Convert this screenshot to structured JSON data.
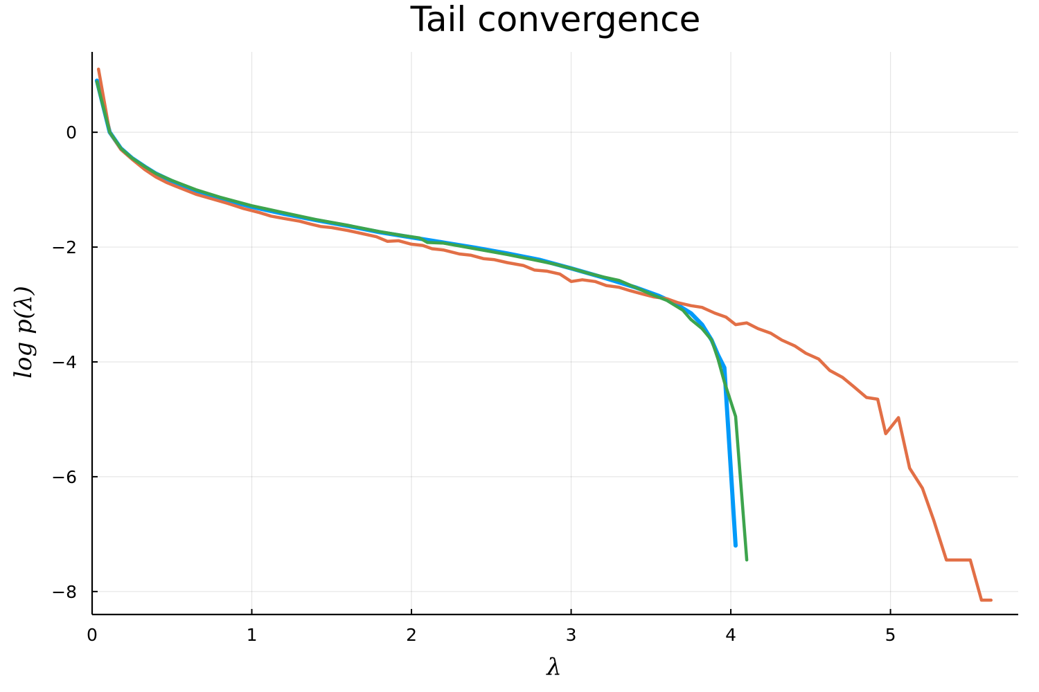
{
  "chart_data": {
    "type": "line",
    "title": "Tail convergence",
    "xlabel": "λ",
    "ylabel": "log p(λ)",
    "xlim": [
      0,
      5.8
    ],
    "ylim": [
      -8.4,
      1.4
    ],
    "xticks": [
      0,
      1,
      2,
      3,
      4,
      5
    ],
    "yticks": [
      0,
      -2,
      -4,
      -6,
      -8
    ],
    "xtick_labels": [
      "0",
      "1",
      "2",
      "3",
      "4",
      "5"
    ],
    "ytick_labels": [
      "0",
      "−2",
      "−4",
      "−6",
      "−8"
    ],
    "grid": true,
    "legend": "none",
    "series": [
      {
        "color": "#009af9",
        "width": 6,
        "points": [
          [
            0.03,
            0.9
          ],
          [
            0.11,
            0.0
          ],
          [
            0.18,
            -0.28
          ],
          [
            0.25,
            -0.45
          ],
          [
            0.33,
            -0.6
          ],
          [
            0.4,
            -0.72
          ],
          [
            0.5,
            -0.85
          ],
          [
            0.65,
            -1.02
          ],
          [
            0.8,
            -1.15
          ],
          [
            1.0,
            -1.3
          ],
          [
            1.2,
            -1.42
          ],
          [
            1.4,
            -1.53
          ],
          [
            1.6,
            -1.63
          ],
          [
            1.8,
            -1.74
          ],
          [
            2.0,
            -1.83
          ],
          [
            2.2,
            -1.92
          ],
          [
            2.4,
            -2.01
          ],
          [
            2.6,
            -2.11
          ],
          [
            2.8,
            -2.22
          ],
          [
            3.0,
            -2.37
          ],
          [
            3.2,
            -2.53
          ],
          [
            3.4,
            -2.7
          ],
          [
            3.55,
            -2.85
          ],
          [
            3.65,
            -2.98
          ],
          [
            3.75,
            -3.15
          ],
          [
            3.82,
            -3.35
          ],
          [
            3.88,
            -3.62
          ],
          [
            3.92,
            -3.88
          ],
          [
            3.96,
            -4.1
          ],
          [
            4.03,
            -7.2
          ]
        ]
      },
      {
        "color": "#e26f46",
        "width": 4.5,
        "points": [
          [
            0.04,
            1.1
          ],
          [
            0.11,
            0.0
          ],
          [
            0.18,
            -0.3
          ],
          [
            0.25,
            -0.47
          ],
          [
            0.33,
            -0.65
          ],
          [
            0.4,
            -0.78
          ],
          [
            0.47,
            -0.88
          ],
          [
            0.55,
            -0.97
          ],
          [
            0.65,
            -1.08
          ],
          [
            0.75,
            -1.16
          ],
          [
            0.85,
            -1.24
          ],
          [
            0.95,
            -1.33
          ],
          [
            1.05,
            -1.4
          ],
          [
            1.12,
            -1.46
          ],
          [
            1.2,
            -1.5
          ],
          [
            1.3,
            -1.55
          ],
          [
            1.37,
            -1.6
          ],
          [
            1.43,
            -1.64
          ],
          [
            1.5,
            -1.66
          ],
          [
            1.6,
            -1.71
          ],
          [
            1.7,
            -1.77
          ],
          [
            1.78,
            -1.82
          ],
          [
            1.85,
            -1.9
          ],
          [
            1.92,
            -1.89
          ],
          [
            2.0,
            -1.95
          ],
          [
            2.07,
            -1.97
          ],
          [
            2.13,
            -2.03
          ],
          [
            2.2,
            -2.05
          ],
          [
            2.3,
            -2.12
          ],
          [
            2.37,
            -2.14
          ],
          [
            2.45,
            -2.2
          ],
          [
            2.52,
            -2.22
          ],
          [
            2.6,
            -2.27
          ],
          [
            2.7,
            -2.32
          ],
          [
            2.77,
            -2.4
          ],
          [
            2.85,
            -2.42
          ],
          [
            2.93,
            -2.47
          ],
          [
            3.0,
            -2.6
          ],
          [
            3.07,
            -2.57
          ],
          [
            3.15,
            -2.6
          ],
          [
            3.22,
            -2.67
          ],
          [
            3.3,
            -2.7
          ],
          [
            3.37,
            -2.76
          ],
          [
            3.45,
            -2.82
          ],
          [
            3.52,
            -2.87
          ],
          [
            3.6,
            -2.9
          ],
          [
            3.67,
            -2.97
          ],
          [
            3.75,
            -3.02
          ],
          [
            3.82,
            -3.05
          ],
          [
            3.9,
            -3.15
          ],
          [
            3.97,
            -3.22
          ],
          [
            4.03,
            -3.35
          ],
          [
            4.1,
            -3.32
          ],
          [
            4.17,
            -3.42
          ],
          [
            4.25,
            -3.5
          ],
          [
            4.32,
            -3.62
          ],
          [
            4.4,
            -3.72
          ],
          [
            4.47,
            -3.85
          ],
          [
            4.55,
            -3.95
          ],
          [
            4.62,
            -4.15
          ],
          [
            4.7,
            -4.27
          ],
          [
            4.77,
            -4.43
          ],
          [
            4.85,
            -4.62
          ],
          [
            4.92,
            -4.65
          ],
          [
            4.97,
            -5.25
          ],
          [
            5.05,
            -4.97
          ],
          [
            5.12,
            -5.85
          ],
          [
            5.2,
            -6.2
          ],
          [
            5.27,
            -6.75
          ],
          [
            5.35,
            -7.45
          ],
          [
            5.42,
            -7.45
          ],
          [
            5.5,
            -7.45
          ],
          [
            5.57,
            -8.15
          ],
          [
            5.63,
            -8.15
          ]
        ]
      },
      {
        "color": "#3da44d",
        "width": 4.5,
        "points": [
          [
            0.03,
            0.88
          ],
          [
            0.11,
            0.0
          ],
          [
            0.18,
            -0.28
          ],
          [
            0.25,
            -0.45
          ],
          [
            0.33,
            -0.6
          ],
          [
            0.4,
            -0.72
          ],
          [
            0.5,
            -0.84
          ],
          [
            0.65,
            -1.0
          ],
          [
            0.8,
            -1.13
          ],
          [
            1.0,
            -1.28
          ],
          [
            1.2,
            -1.4
          ],
          [
            1.4,
            -1.52
          ],
          [
            1.6,
            -1.62
          ],
          [
            1.8,
            -1.73
          ],
          [
            1.95,
            -1.8
          ],
          [
            2.05,
            -1.84
          ],
          [
            2.1,
            -1.92
          ],
          [
            2.2,
            -1.93
          ],
          [
            2.4,
            -2.03
          ],
          [
            2.6,
            -2.13
          ],
          [
            2.8,
            -2.24
          ],
          [
            2.9,
            -2.3
          ],
          [
            3.0,
            -2.37
          ],
          [
            3.1,
            -2.45
          ],
          [
            3.2,
            -2.52
          ],
          [
            3.3,
            -2.58
          ],
          [
            3.4,
            -2.7
          ],
          [
            3.5,
            -2.82
          ],
          [
            3.6,
            -2.93
          ],
          [
            3.7,
            -3.1
          ],
          [
            3.75,
            -3.26
          ],
          [
            3.82,
            -3.42
          ],
          [
            3.88,
            -3.62
          ],
          [
            3.92,
            -3.95
          ],
          [
            3.96,
            -4.35
          ],
          [
            4.03,
            -4.95
          ],
          [
            4.1,
            -7.45
          ]
        ]
      }
    ]
  }
}
